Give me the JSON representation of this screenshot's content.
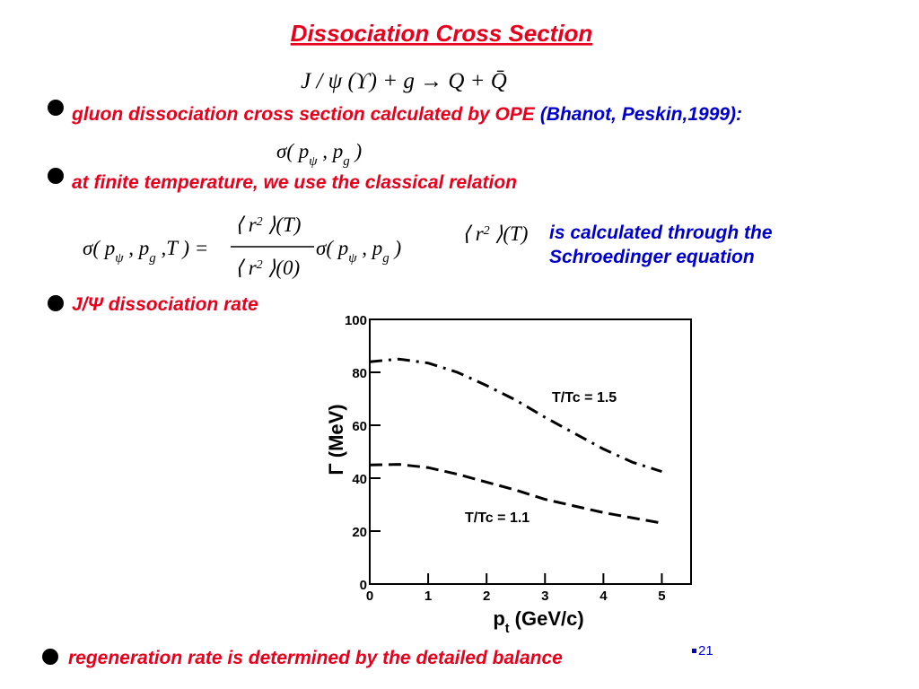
{
  "title": "Dissociation Cross Section",
  "reaction": "J / ψ  (ϒ) + g  →  Q + Q̄",
  "bullets": [
    {
      "text": "gluon dissociation cross section calculated by OPE",
      "note": "(Bhanot, Peskin,1999):"
    },
    {
      "text": "at finite temperature, we use the classical relation"
    },
    {
      "text": "J/Ψ dissociation rate"
    },
    {
      "text": "regeneration rate is determined by the detailed balance"
    }
  ],
  "equations": {
    "cross_section": [
      {
        "text": "σ( p"
      },
      {
        "text": "ψ",
        "sub": true
      },
      {
        "text": " , p"
      },
      {
        "text": "g",
        "sub": true
      },
      {
        "text": " )"
      }
    ],
    "thermal": {
      "lhs": [
        {
          "text": "σ( p"
        },
        {
          "text": "ψ",
          "sub": true
        },
        {
          "text": " , p"
        },
        {
          "text": "g",
          "sub": true
        },
        {
          "text": " ,T ) ="
        }
      ],
      "numerator": [
        {
          "text": "⟨ r"
        },
        {
          "text": "2",
          "sup": true
        },
        {
          "text": " ⟩(T)"
        }
      ],
      "denominator": [
        {
          "text": "⟨ r"
        },
        {
          "text": "2",
          "sup": true
        },
        {
          "text": " ⟩(0)"
        }
      ],
      "rhs": [
        {
          "text": "σ( p"
        },
        {
          "text": "ψ",
          "sub": true
        },
        {
          "text": " , p"
        },
        {
          "text": "g",
          "sub": true
        },
        {
          "text": " )"
        }
      ]
    },
    "radius": [
      {
        "text": "⟨ r"
      },
      {
        "text": "2",
        "sup": true
      },
      {
        "text": " ⟩(T)"
      }
    ]
  },
  "annotation": [
    "is calculated through the",
    "Schroedinger equation"
  ],
  "page_number": "21",
  "chart_data": {
    "type": "line",
    "x": [
      0,
      0.5,
      1,
      1.5,
      2,
      2.5,
      3,
      3.5,
      4,
      4.5,
      5
    ],
    "series": [
      {
        "name": "T/Tc = 1.5",
        "color": "#000000",
        "linestyle": "dash-dot",
        "values": [
          84,
          85,
          83.5,
          80,
          75,
          69.5,
          63,
          57,
          51,
          46,
          42.5
        ]
      },
      {
        "name": "T/Tc = 1.1",
        "color": "#000000",
        "linestyle": "dash",
        "values": [
          45,
          45.2,
          44,
          41.5,
          38.5,
          35.5,
          32,
          29.5,
          27,
          25,
          23
        ]
      }
    ],
    "xlim": [
      0,
      5.5
    ],
    "ylim": [
      0,
      100
    ],
    "xticks": [
      0,
      1,
      2,
      3,
      4,
      5
    ],
    "yticks": [
      0,
      20,
      40,
      60,
      80,
      100
    ],
    "xlabel": [
      {
        "text": "p"
      },
      {
        "text": "t",
        "sub": true
      },
      {
        "text": " (GeV/c)"
      }
    ],
    "ylabel": [
      {
        "text": "Γ"
      },
      {
        "text": " (MeV)"
      }
    ]
  }
}
